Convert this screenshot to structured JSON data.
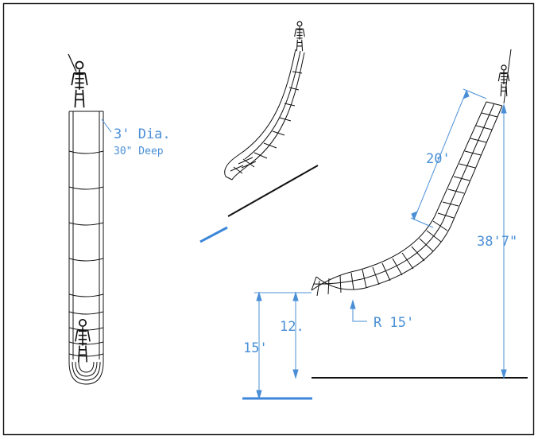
{
  "colors": {
    "line": "#111111",
    "dimension": "#4a8fd6",
    "accent": "#3b86d8",
    "background": "#ffffff"
  },
  "annotations": {
    "diameter": "3' Dia.",
    "depth": "30\" Deep",
    "straight_length": "20'",
    "total_height": "38'7\"",
    "radius": "R 15'",
    "exit_height": "12.",
    "pool_height": "15'"
  }
}
